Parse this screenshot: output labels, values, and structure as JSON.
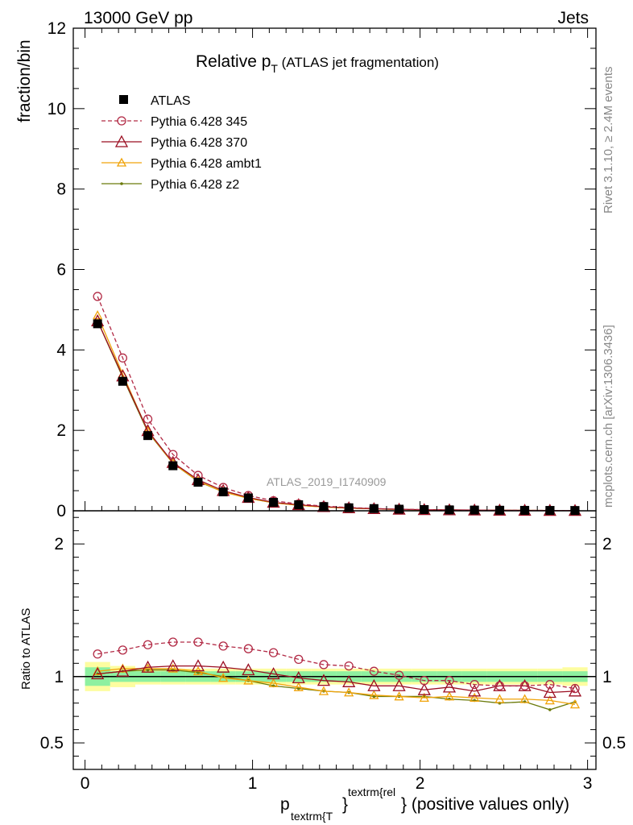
{
  "header": {
    "left": "13000 GeV pp",
    "right": "Jets"
  },
  "side": {
    "rivet": "Rivet 3.1.10, ≥ 2.4M events",
    "mcplots": "mcplots.cern.ch [arXiv:1306.3436]"
  },
  "chart_data": {
    "type": "line",
    "title": "Relative p",
    "title_sub": "T",
    "title_rest": " (ATLAS jet fragmentation)",
    "watermark": "ATLAS_2019_I1740909",
    "ylabel": "fraction/bin",
    "ratio_ylabel": "Ratio to ATLAS",
    "xlabel": {
      "p": "p",
      "sub": "textrm{T",
      "sup": "textrm{rel",
      "close": "}",
      "rest": "} (positive values only)"
    },
    "xlim": [
      -0.07,
      3.05
    ],
    "ylim": [
      0,
      12
    ],
    "ratio_ylim": [
      0.3,
      2.25
    ],
    "x_ticks": [
      "0",
      "1",
      "2",
      "3"
    ],
    "y_ticks": [
      "0",
      "2",
      "4",
      "6",
      "8",
      "10",
      "12"
    ],
    "ratio_ticks": [
      "0.5",
      "1",
      "2"
    ],
    "legend_position": "top-left",
    "bins": [
      [
        0,
        0.15
      ],
      [
        0.15,
        0.3
      ],
      [
        0.3,
        0.45
      ],
      [
        0.45,
        0.6
      ],
      [
        0.6,
        0.75
      ],
      [
        0.75,
        0.9
      ],
      [
        0.9,
        1.05
      ],
      [
        1.05,
        1.2
      ],
      [
        1.2,
        1.35
      ],
      [
        1.35,
        1.5
      ],
      [
        1.5,
        1.65
      ],
      [
        1.65,
        1.8
      ],
      [
        1.8,
        1.95
      ],
      [
        1.95,
        2.1
      ],
      [
        2.1,
        2.25
      ],
      [
        2.25,
        2.4
      ],
      [
        2.4,
        2.55
      ],
      [
        2.55,
        2.7
      ],
      [
        2.7,
        2.85
      ],
      [
        2.85,
        3.0
      ]
    ],
    "x": [
      0.075,
      0.225,
      0.375,
      0.525,
      0.675,
      0.825,
      0.975,
      1.125,
      1.275,
      1.425,
      1.575,
      1.725,
      1.875,
      2.025,
      2.175,
      2.325,
      2.475,
      2.625,
      2.775,
      2.925
    ],
    "series": [
      {
        "name": "ATLAS",
        "color": "#000000",
        "marker": "square",
        "y": [
          4.65,
          3.22,
          1.87,
          1.12,
          0.71,
          0.47,
          0.32,
          0.21,
          0.15,
          0.105,
          0.075,
          0.055,
          0.04,
          0.03,
          0.023,
          0.018,
          0.014,
          0.011,
          0.009,
          0.007
        ]
      },
      {
        "name": "Pythia 6.428 345",
        "color": "#b22a45",
        "marker": "circle",
        "dashed": true,
        "y": [
          5.33,
          3.8,
          2.28,
          1.4,
          0.88,
          0.58,
          0.38,
          0.25,
          0.17,
          0.116,
          0.082,
          0.057,
          0.04,
          0.029,
          0.022,
          0.017,
          0.013,
          0.01,
          0.0085,
          0.0064
        ],
        "ratio": [
          1.17,
          1.2,
          1.24,
          1.26,
          1.26,
          1.23,
          1.21,
          1.18,
          1.13,
          1.09,
          1.08,
          1.04,
          1.01,
          0.97,
          0.97,
          0.94,
          0.93,
          0.93,
          0.94,
          0.91
        ]
      },
      {
        "name": "Pythia 6.428 370",
        "color": "#9b0e21",
        "marker": "triangle",
        "y": [
          4.72,
          3.35,
          1.99,
          1.2,
          0.77,
          0.5,
          0.33,
          0.21,
          0.15,
          0.102,
          0.072,
          0.051,
          0.037,
          0.027,
          0.021,
          0.016,
          0.013,
          0.01,
          0.008,
          0.0062
        ],
        "ratio": [
          1.02,
          1.04,
          1.07,
          1.08,
          1.08,
          1.07,
          1.05,
          1.02,
          0.99,
          0.97,
          0.96,
          0.93,
          0.93,
          0.9,
          0.92,
          0.89,
          0.93,
          0.93,
          0.88,
          0.89
        ]
      },
      {
        "name": "Pythia 6.428 ambt1",
        "color": "#f0a30a",
        "marker": "triangle",
        "y": [
          4.86,
          3.4,
          1.98,
          1.18,
          0.74,
          0.47,
          0.31,
          0.2,
          0.135,
          0.093,
          0.066,
          0.047,
          0.034,
          0.025,
          0.019,
          0.015,
          0.012,
          0.009,
          0.0074,
          0.0056
        ],
        "ratio": [
          1.04,
          1.06,
          1.06,
          1.06,
          1.04,
          0.99,
          0.97,
          0.95,
          0.92,
          0.89,
          0.88,
          0.86,
          0.85,
          0.84,
          0.85,
          0.84,
          0.83,
          0.83,
          0.82,
          0.79
        ]
      },
      {
        "name": "Pythia 6.428 z2",
        "color": "#6b7a0a",
        "marker": "dot",
        "y": [
          4.72,
          3.32,
          1.96,
          1.18,
          0.73,
          0.47,
          0.31,
          0.197,
          0.137,
          0.093,
          0.066,
          0.047,
          0.034,
          0.025,
          0.019,
          0.015,
          0.0115,
          0.009,
          0.0068,
          0.0055
        ],
        "ratio": [
          1.02,
          1.04,
          1.05,
          1.05,
          1.03,
          1.0,
          0.97,
          0.93,
          0.91,
          0.89,
          0.88,
          0.85,
          0.85,
          0.85,
          0.83,
          0.82,
          0.8,
          0.81,
          0.75,
          0.81
        ]
      }
    ],
    "band_inner": [
      [
        0.93,
        1.07
      ],
      [
        0.96,
        1.04
      ],
      [
        0.96,
        1.04
      ],
      [
        0.96,
        1.04
      ],
      [
        0.96,
        1.04
      ],
      [
        0.96,
        1.04
      ],
      [
        0.96,
        1.04
      ],
      [
        0.96,
        1.04
      ],
      [
        0.96,
        1.04
      ],
      [
        0.96,
        1.04
      ],
      [
        0.96,
        1.04
      ],
      [
        0.96,
        1.04
      ],
      [
        0.96,
        1.04
      ],
      [
        0.96,
        1.04
      ],
      [
        0.96,
        1.04
      ],
      [
        0.96,
        1.04
      ],
      [
        0.96,
        1.04
      ],
      [
        0.96,
        1.04
      ],
      [
        0.96,
        1.04
      ],
      [
        0.96,
        1.04
      ]
    ],
    "band_outer": [
      [
        0.89,
        1.11
      ],
      [
        0.92,
        1.08
      ],
      [
        0.94,
        1.06
      ],
      [
        0.94,
        1.06
      ],
      [
        0.94,
        1.06
      ],
      [
        0.94,
        1.06
      ],
      [
        0.94,
        1.06
      ],
      [
        0.94,
        1.06
      ],
      [
        0.94,
        1.06
      ],
      [
        0.94,
        1.06
      ],
      [
        0.94,
        1.06
      ],
      [
        0.94,
        1.06
      ],
      [
        0.94,
        1.06
      ],
      [
        0.94,
        1.06
      ],
      [
        0.94,
        1.06
      ],
      [
        0.94,
        1.06
      ],
      [
        0.94,
        1.06
      ],
      [
        0.94,
        1.06
      ],
      [
        0.94,
        1.06
      ],
      [
        0.93,
        1.07
      ]
    ]
  }
}
